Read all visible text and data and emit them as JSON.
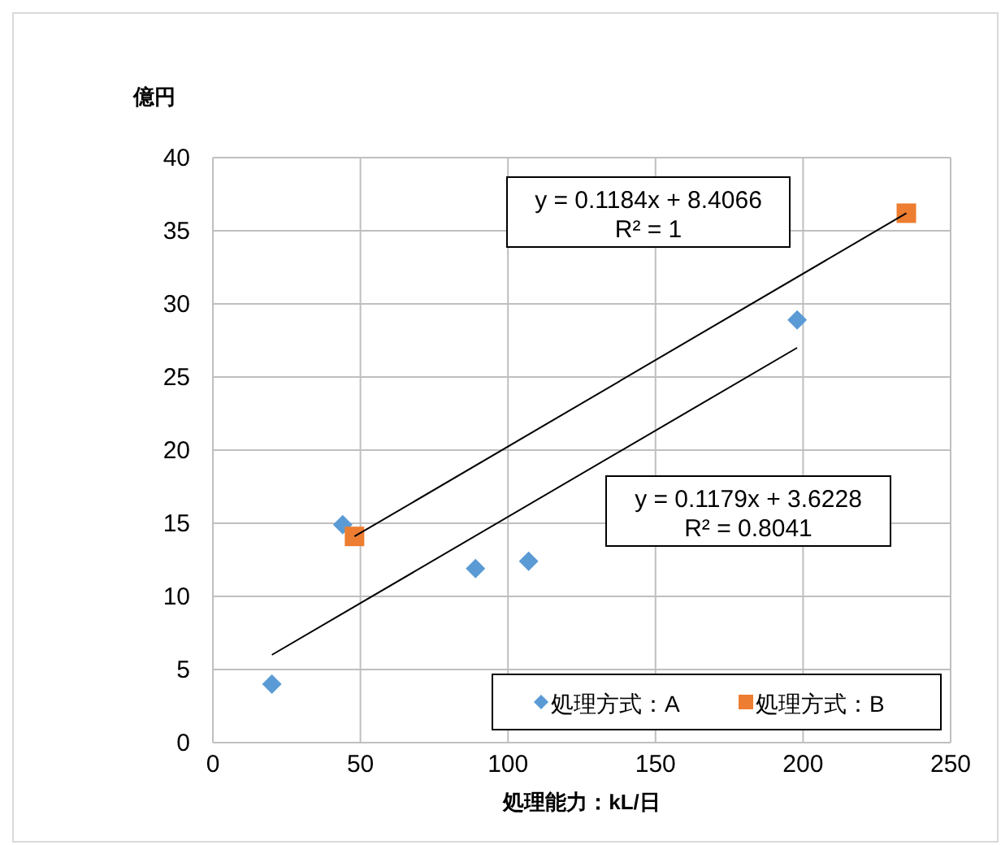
{
  "chart_data": {
    "type": "scatter",
    "xlabel": "処理能力：kL/日",
    "ylabel": "億円",
    "series": [
      {
        "name": "処理方式：A",
        "color": "#5b9bd5",
        "marker": "diamond",
        "x": [
          20,
          44,
          89,
          107,
          198
        ],
        "values": [
          4.0,
          14.9,
          11.9,
          12.4,
          28.9
        ]
      },
      {
        "name": "処理方式：B",
        "color": "#ed7d31",
        "marker": "square",
        "x": [
          48,
          235
        ],
        "values": [
          14.1,
          36.2
        ]
      },
      {
        "type": "line",
        "color": "#000000",
        "marker": "none",
        "x": [
          20,
          198
        ],
        "values": [
          6.0,
          27.0
        ]
      },
      {
        "type": "line",
        "color": "#000000",
        "marker": "none",
        "x": [
          48,
          235
        ],
        "values": [
          14.1,
          36.2
        ]
      }
    ],
    "annotations": [
      "y = 0.1184x + 8.4066",
      "R² = 1",
      "y = 0.1179x + 3.6228",
      "R² = 0.8041"
    ],
    "xlim": [
      0,
      250
    ],
    "xticks": [
      0,
      50,
      100,
      150,
      200,
      250
    ],
    "ylim": [
      0,
      40
    ],
    "yticks": [
      0,
      5,
      10,
      15,
      20,
      25,
      30,
      35,
      40
    ],
    "grid": true,
    "legend": "bottom right"
  }
}
